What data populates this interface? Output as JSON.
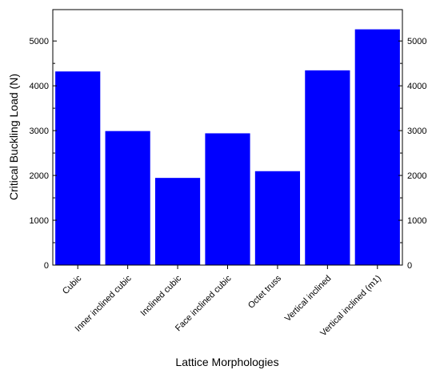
{
  "chart_data": {
    "type": "bar",
    "categories": [
      "Cubic",
      "Inner inclined cubic",
      "Inclined cubic",
      "Face inclined cubic",
      "Octet truss",
      "Vertical inclined",
      "Vertical inclined (m1)"
    ],
    "values": [
      4320,
      2990,
      1945,
      2940,
      2095,
      4345,
      5260
    ],
    "xlabel": "Lattice Morphologies",
    "ylabel": "Critical Buckling Load (N)",
    "ylim": [
      0,
      5700
    ],
    "yticks": [
      0,
      1000,
      2000,
      3000,
      4000,
      5000
    ],
    "right_axis_mirror": true,
    "grid": false,
    "bar_color": "#0000ff"
  }
}
